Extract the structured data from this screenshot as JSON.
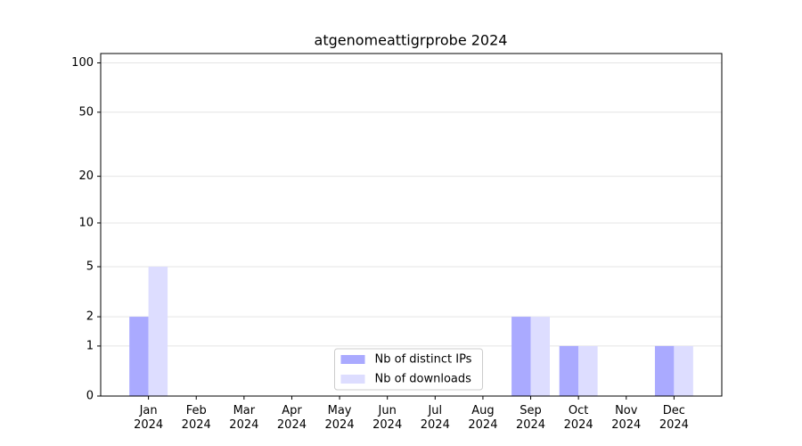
{
  "chart_data": {
    "type": "bar",
    "title": "atgenomeattigrprobe 2024",
    "categories": [
      "Jan 2024",
      "Feb 2024",
      "Mar 2024",
      "Apr 2024",
      "May 2024",
      "Jun 2024",
      "Jul 2024",
      "Aug 2024",
      "Sep 2024",
      "Oct 2024",
      "Nov 2024",
      "Dec 2024"
    ],
    "series": [
      {
        "name": "Nb of distinct IPs",
        "color": "#aaaaff",
        "values": [
          2,
          0,
          0,
          0,
          0,
          0,
          0,
          0,
          2,
          1,
          0,
          1
        ]
      },
      {
        "name": "Nb of downloads",
        "color": "#ddddff",
        "values": [
          5,
          0,
          0,
          0,
          0,
          0,
          0,
          0,
          2,
          1,
          0,
          1
        ]
      }
    ],
    "yscale": "log1p",
    "ylim": [
      0,
      114
    ],
    "yticks": [
      0,
      1,
      2,
      5,
      10,
      20,
      50,
      100
    ],
    "grid": true,
    "legend": "lower center"
  }
}
